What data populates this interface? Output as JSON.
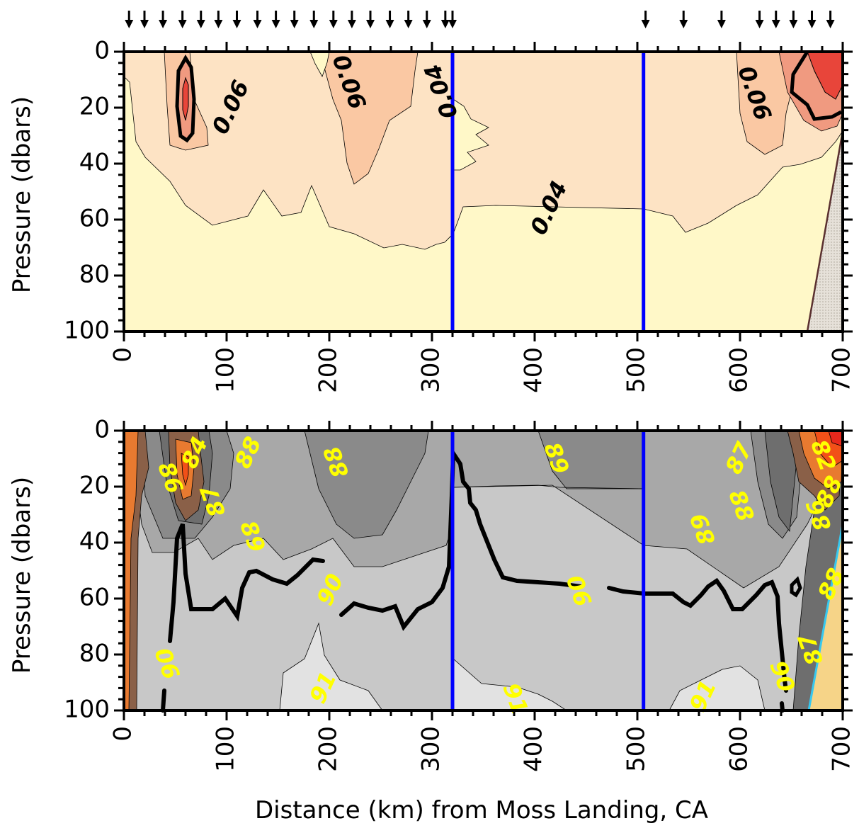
{
  "chart_data": [
    {
      "type": "contour",
      "panel": "top",
      "ylabel": "Pressure (dbars)",
      "xlim": [
        0,
        700
      ],
      "ylim": [
        100,
        0
      ],
      "x_ticks": [
        "0",
        "100",
        "200",
        "300",
        "400",
        "500",
        "600",
        "700"
      ],
      "y_ticks": [
        "0",
        "20",
        "40",
        "60",
        "80",
        "100"
      ],
      "station_arrows_km": [
        5,
        20,
        38,
        57,
        75,
        92,
        110,
        130,
        148,
        166,
        185,
        204,
        222,
        240,
        259,
        277,
        295,
        313,
        320,
        508,
        545,
        582,
        619,
        635,
        652,
        670,
        688
      ],
      "section_lines_km": [
        320,
        506
      ],
      "contour_labels": [
        {
          "text": "0.06",
          "x": 105,
          "y": 20
        },
        {
          "text": "0.06",
          "x": 218,
          "y": 11
        },
        {
          "text": "0.04",
          "x": 310,
          "y": 14
        },
        {
          "text": "0.04",
          "x": 415,
          "y": 56
        },
        {
          "text": "0.06",
          "x": 613,
          "y": 15
        }
      ],
      "colors": {
        "lowest": "#fff8c8",
        "low": "#fde3c4",
        "mid": "#fac8a3",
        "high": "#f09a80",
        "highest": "#e8453a",
        "bottom": "#d8d3cc",
        "section_line": "#0000ff"
      }
    },
    {
      "type": "contour",
      "panel": "bottom",
      "xlabel": "Distance (km) from Moss Landing, CA",
      "ylabel": "Pressure (dbars)",
      "xlim": [
        0,
        700
      ],
      "ylim": [
        100,
        0
      ],
      "x_ticks": [
        "0",
        "100",
        "200",
        "300",
        "400",
        "500",
        "600",
        "700"
      ],
      "y_ticks": [
        "0",
        "20",
        "40",
        "60",
        "80",
        "100"
      ],
      "section_lines_km": [
        320,
        506
      ],
      "contour_labels": [
        {
          "text": "84",
          "x": 70,
          "y": 8
        },
        {
          "text": "86",
          "x": 44,
          "y": 17
        },
        {
          "text": "87",
          "x": 88,
          "y": 25
        },
        {
          "text": "88",
          "x": 122,
          "y": 8
        },
        {
          "text": "89",
          "x": 124,
          "y": 38
        },
        {
          "text": "88",
          "x": 208,
          "y": 11
        },
        {
          "text": "90",
          "x": 202,
          "y": 57
        },
        {
          "text": "89",
          "x": 420,
          "y": 10
        },
        {
          "text": "90",
          "x": 445,
          "y": 57
        },
        {
          "text": "91",
          "x": 195,
          "y": 92
        },
        {
          "text": "91",
          "x": 380,
          "y": 96
        },
        {
          "text": "90",
          "x": 44,
          "y": 83
        },
        {
          "text": "87",
          "x": 600,
          "y": 10
        },
        {
          "text": "88",
          "x": 600,
          "y": 27
        },
        {
          "text": "89",
          "x": 565,
          "y": 35
        },
        {
          "text": "91",
          "x": 565,
          "y": 95
        },
        {
          "text": "90",
          "x": 640,
          "y": 88
        },
        {
          "text": "87",
          "x": 670,
          "y": 78
        },
        {
          "text": "88",
          "x": 690,
          "y": 55
        },
        {
          "text": "82",
          "x": 680,
          "y": 9
        },
        {
          "text": "86",
          "x": 678,
          "y": 30
        },
        {
          "text": "88",
          "x": 688,
          "y": 22
        }
      ],
      "colors": {
        "91": "#e2e2e2",
        "90": "#c8c8c8",
        "89": "#a8a8a8",
        "88": "#8a8a8a",
        "87": "#6e6e6e",
        "86": "#8a6048",
        "84": "#e87a30",
        "82": "#f25018",
        "80": "#e8281c",
        "bottom": "#f6d488",
        "label": "#ffff00",
        "section_line": "#0000ff",
        "bottom_edge": "#36c8f0"
      }
    }
  ]
}
